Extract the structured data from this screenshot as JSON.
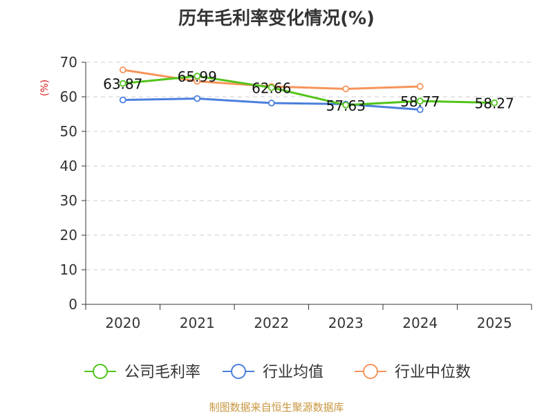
{
  "chart_data": {
    "type": "line",
    "title": "历年毛利率变化情况(%)",
    "ylabel": "(%)",
    "xlabel": "",
    "categories": [
      "2020",
      "2021",
      "2022",
      "2023",
      "2024",
      "2025"
    ],
    "ylim": [
      0,
      70
    ],
    "yticks": [
      0,
      10,
      20,
      30,
      40,
      50,
      60,
      70
    ],
    "grid": true,
    "legend": "bottom",
    "series": [
      {
        "name": "公司毛利率",
        "color": "#52c41a",
        "values": [
          63.87,
          65.99,
          62.66,
          57.63,
          58.77,
          58.27
        ],
        "labels": [
          "63.87",
          "65.99",
          "62.66",
          "57.63",
          "58.77",
          "58.27"
        ]
      },
      {
        "name": "行业均值",
        "color": "#4a7fdc",
        "values": [
          59.1,
          59.5,
          58.2,
          57.9,
          56.3,
          null
        ]
      },
      {
        "name": "行业中位数",
        "color": "#f7945a",
        "values": [
          67.8,
          64.5,
          63.0,
          62.3,
          63.0,
          null
        ]
      }
    ]
  },
  "footer": {
    "source": "制图数据来自恒生聚源数据库"
  }
}
